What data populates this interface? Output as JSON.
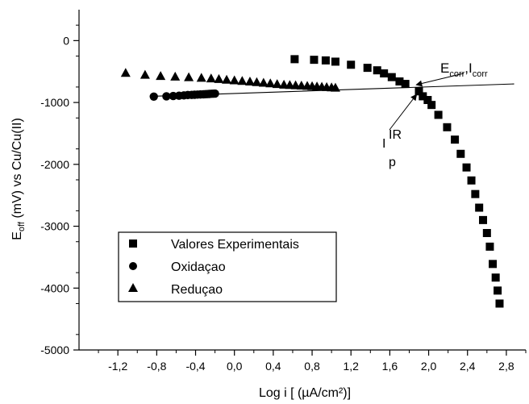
{
  "chart_data": {
    "type": "scatter",
    "xlabel": "Log i [ (µA/cm²)]",
    "ylabel": "E_off (mV) vs Cu/Cu(II)",
    "xlim": [
      -1.6,
      3.0
    ],
    "ylim": [
      -5000,
      500
    ],
    "x_ticks": [
      -1.2,
      -0.8,
      -0.4,
      0.0,
      0.4,
      0.8,
      1.2,
      1.6,
      2.0,
      2.4,
      2.8
    ],
    "x_tick_labels": [
      "-1,2",
      "-0,8",
      "-0,4",
      "0,0",
      "0,4",
      "0,8",
      "1,2",
      "1,6",
      "2,0",
      "2,4",
      "2,8"
    ],
    "y_ticks": [
      0,
      -1000,
      -2000,
      -3000,
      -4000,
      -5000
    ],
    "y_tick_labels": [
      "0",
      "-1000",
      "-2000",
      "-3000",
      "-4000",
      "-5000"
    ],
    "grid": false,
    "legend_position": "lower-left",
    "series": [
      {
        "name": "Valores Experimentais",
        "marker": "square",
        "x": [
          0.62,
          0.82,
          0.94,
          1.04,
          1.2,
          1.37,
          1.47,
          1.54,
          1.62,
          1.7,
          1.76,
          1.9,
          1.94,
          1.99,
          2.03,
          2.1,
          2.19,
          2.27,
          2.33,
          2.39,
          2.44,
          2.48,
          2.52,
          2.56,
          2.6,
          2.63,
          2.66,
          2.69,
          2.71,
          2.73
        ],
        "y": [
          -300,
          -310,
          -320,
          -340,
          -390,
          -440,
          -480,
          -530,
          -590,
          -660,
          -700,
          -820,
          -900,
          -960,
          -1040,
          -1200,
          -1400,
          -1600,
          -1830,
          -2050,
          -2260,
          -2480,
          -2700,
          -2900,
          -3110,
          -3330,
          -3610,
          -3830,
          -4040,
          -4250
        ]
      },
      {
        "name": "Oxidaçao",
        "marker": "circle",
        "x": [
          -0.83,
          -0.7,
          -0.63,
          -0.57,
          -0.52,
          -0.48,
          -0.44,
          -0.41,
          -0.38,
          -0.35,
          -0.32,
          -0.3,
          -0.28,
          -0.26,
          -0.24,
          -0.22,
          -0.2
        ],
        "y": [
          -905,
          -900,
          -895,
          -890,
          -885,
          -880,
          -878,
          -875,
          -872,
          -870,
          -868,
          -866,
          -864,
          -862,
          -860,
          -858,
          -856
        ]
      },
      {
        "name": "Reduçao",
        "marker": "triangle",
        "x": [
          -1.12,
          -0.92,
          -0.76,
          -0.61,
          -0.47,
          -0.34,
          -0.24,
          -0.16,
          -0.08,
          0.0,
          0.08,
          0.16,
          0.23,
          0.3,
          0.37,
          0.44,
          0.51,
          0.57,
          0.63,
          0.69,
          0.75,
          0.8,
          0.85,
          0.9,
          0.95,
          1.0,
          1.04
        ],
        "y": [
          -520,
          -550,
          -570,
          -580,
          -590,
          -600,
          -610,
          -620,
          -630,
          -640,
          -650,
          -660,
          -670,
          -680,
          -690,
          -700,
          -710,
          -715,
          -720,
          -725,
          -730,
          -735,
          -740,
          -745,
          -750,
          -755,
          -760
        ]
      }
    ],
    "fit_line": {
      "x": [
        -0.85,
        2.88
      ],
      "y": [
        -900,
        -700
      ]
    },
    "annotations": {
      "ecorr": {
        "E": "E",
        "sub1": "corr",
        "comma": ",",
        "I": "I",
        "sub2": "corr",
        "arrow_to": [
          1.84,
          -740
        ]
      },
      "ip": {
        "I": "I",
        "sup": "IR",
        "sub": "p",
        "arrow_to": [
          1.9,
          -820
        ]
      }
    }
  }
}
